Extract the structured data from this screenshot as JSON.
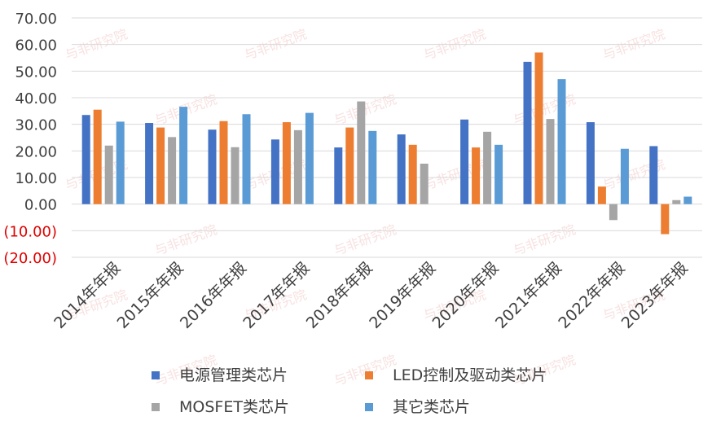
{
  "chart_data": {
    "type": "bar",
    "categories": [
      "2014年年报",
      "2015年年报",
      "2016年年报",
      "2017年年报",
      "2018年年报",
      "2019年年报",
      "2020年年报",
      "2021年年报",
      "2022年年报",
      "2023年年报"
    ],
    "series": [
      {
        "name": "电源管理类芯片",
        "color": "#4472C4",
        "values": [
          33.5,
          30.5,
          28.0,
          24.3,
          21.3,
          26.2,
          31.8,
          53.5,
          30.8,
          21.8
        ]
      },
      {
        "name": "LED控制及驱动类芯片",
        "color": "#ED7D31",
        "values": [
          35.5,
          28.8,
          31.2,
          30.8,
          28.8,
          22.3,
          21.3,
          57.0,
          6.6,
          -11.3
        ]
      },
      {
        "name": "MOSFET类芯片",
        "color": "#A5A5A5",
        "values": [
          22.0,
          25.2,
          21.4,
          27.8,
          38.6,
          15.2,
          27.2,
          32.0,
          -6.0,
          1.5
        ]
      },
      {
        "name": "其它类芯片",
        "color": "#5B9BD5",
        "values": [
          31.0,
          36.6,
          33.8,
          34.3,
          27.5,
          null,
          22.3,
          47.0,
          20.8,
          2.8
        ]
      }
    ],
    "y_ticks": [
      "70.00",
      "60.00",
      "50.00",
      "40.00",
      "30.00",
      "20.00",
      "10.00",
      "0.00",
      "(10.00)",
      "(20.00)"
    ],
    "ylim": [
      -20,
      70
    ],
    "y_step": 10,
    "grid": true,
    "legend_position": "bottom",
    "positive_tick_color": "#404040",
    "negative_tick_color": "#E00000",
    "grid_color": "#D9D9D9",
    "watermark_text": "与非研究院"
  }
}
